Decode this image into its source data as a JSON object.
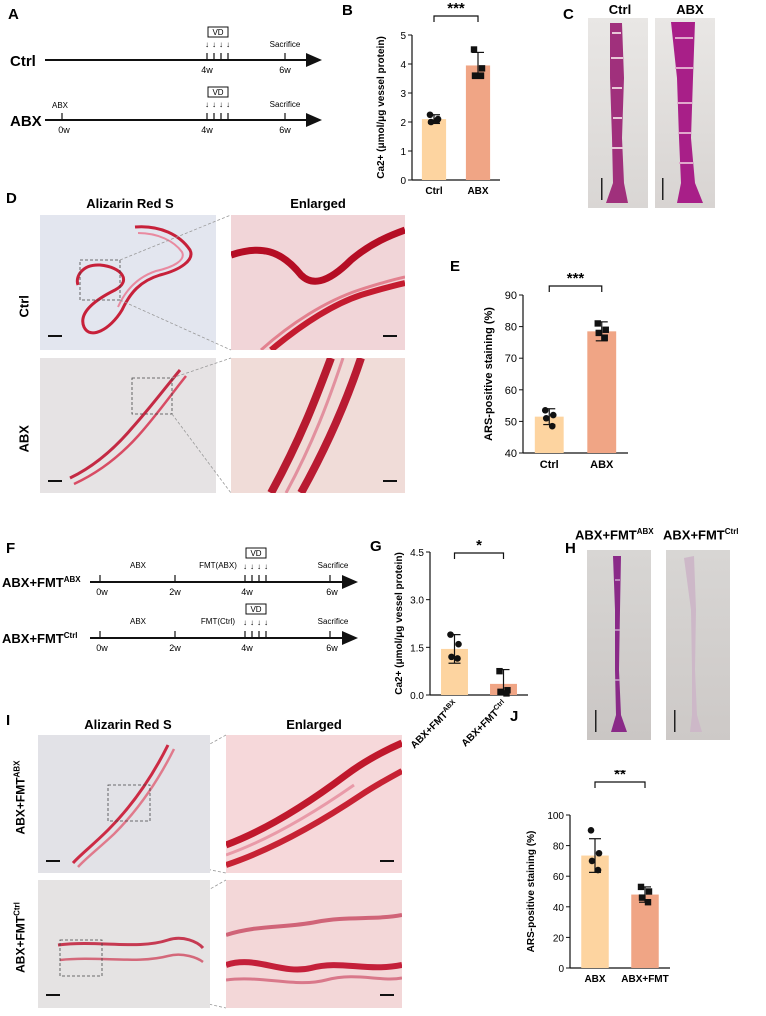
{
  "panels": {
    "A": "A",
    "B": "B",
    "C": "C",
    "D": "D",
    "E": "E",
    "F": "F",
    "G": "G",
    "H": "H",
    "I": "I",
    "J": "J"
  },
  "timeline_A": {
    "rows": [
      {
        "label": "Ctrl",
        "ticks": [
          "4w",
          "6w"
        ],
        "vd": "VD",
        "end": "Sacrifice"
      },
      {
        "label": "ABX",
        "ticks": [
          "0w",
          "4w",
          "6w"
        ],
        "vd": "VD",
        "end": "Sacrifice",
        "start_note": "ABX"
      }
    ]
  },
  "timeline_F": {
    "rows": [
      {
        "label_main": "ABX+FMT",
        "label_sup": "ABX",
        "ticks": [
          "0w",
          "2w",
          "4w",
          "6w"
        ],
        "seg1": "ABX",
        "seg2": "FMT(ABX)",
        "vd": "VD",
        "end": "Sacrifice"
      },
      {
        "label_main": "ABX+FMT",
        "label_sup": "Ctrl",
        "ticks": [
          "0w",
          "2w",
          "4w",
          "6w"
        ],
        "seg1": "ABX",
        "seg2": "FMT(Ctrl)",
        "vd": "VD",
        "end": "Sacrifice"
      }
    ]
  },
  "photos_C": {
    "left": "Ctrl",
    "right": "ABX"
  },
  "histology_D": {
    "col1": "Alizarin Red S",
    "col2": "Enlarged",
    "row1": "Ctrl",
    "row2": "ABX"
  },
  "photos_H": {
    "left_main": "ABX+FMT",
    "left_sup": "ABX",
    "right_main": "ABX+FMT",
    "right_sup": "Ctrl"
  },
  "histology_I": {
    "col1": "Alizarin Red S",
    "col2": "Enlarged",
    "row1_main": "ABX+FMT",
    "row1_sup": "ABX",
    "row2_main": "ABX+FMT",
    "row2_sup": "Ctrl"
  },
  "chart_data": [
    {
      "id": "B",
      "type": "bar",
      "categories": [
        "Ctrl",
        "ABX"
      ],
      "values": [
        2.1,
        3.95
      ],
      "errors": [
        0.15,
        0.45
      ],
      "points": [
        [
          2.25,
          2.1,
          2.0,
          2.05
        ],
        [
          4.5,
          3.85,
          3.6,
          3.6
        ]
      ],
      "ylabel": "Ca2+ (μmol/μg vessel protein)",
      "ylim": [
        0,
        5
      ],
      "yticks": [
        "0",
        "1",
        "2",
        "3",
        "4",
        "5"
      ],
      "significance": "***",
      "colors": [
        "#fdd4a0",
        "#f0a585"
      ]
    },
    {
      "id": "E",
      "type": "bar",
      "categories": [
        "Ctrl",
        "ABX"
      ],
      "values": [
        51.5,
        78.5
      ],
      "errors": [
        2.5,
        3.0
      ],
      "points": [
        [
          53.5,
          52.0,
          51.0,
          48.5
        ],
        [
          81.0,
          79.0,
          78.0,
          76.5
        ]
      ],
      "ylabel": "ARS-positive staining (%)",
      "ylim": [
        40,
        90
      ],
      "yticks": [
        "40",
        "50",
        "60",
        "70",
        "80",
        "90"
      ],
      "significance": "***",
      "colors": [
        "#fdd4a0",
        "#f0a585"
      ]
    },
    {
      "id": "G",
      "type": "bar",
      "categories": [
        "ABX+FMTABX",
        "ABX+FMTCtrl"
      ],
      "values": [
        1.45,
        0.35
      ],
      "errors": [
        0.45,
        0.45
      ],
      "points": [
        [
          1.9,
          1.6,
          1.2,
          1.15
        ],
        [
          0.75,
          0.15,
          0.1,
          0.05
        ]
      ],
      "ylabel": "Ca2+ (μmol/μg vessel protein)",
      "ylim": [
        0,
        4.5
      ],
      "yticks": [
        "0.0",
        "1.5",
        "3.0",
        "4.5"
      ],
      "significance": "*",
      "colors": [
        "#fdd4a0",
        "#f0a585"
      ]
    },
    {
      "id": "J",
      "type": "bar",
      "categories": [
        "ABX",
        "ABX+FMT"
      ],
      "values": [
        73.5,
        48.0
      ],
      "errors": [
        11.0,
        5.0
      ],
      "points": [
        [
          90.0,
          75.0,
          70.0,
          64.0
        ],
        [
          53.0,
          50.0,
          46.0,
          43.0
        ]
      ],
      "ylabel": "ARS-positive staining (%)",
      "ylim": [
        0,
        100
      ],
      "yticks": [
        "0",
        "20",
        "40",
        "60",
        "80",
        "100"
      ],
      "significance": "**",
      "colors": [
        "#fdd4a0",
        "#f0a585"
      ]
    }
  ]
}
